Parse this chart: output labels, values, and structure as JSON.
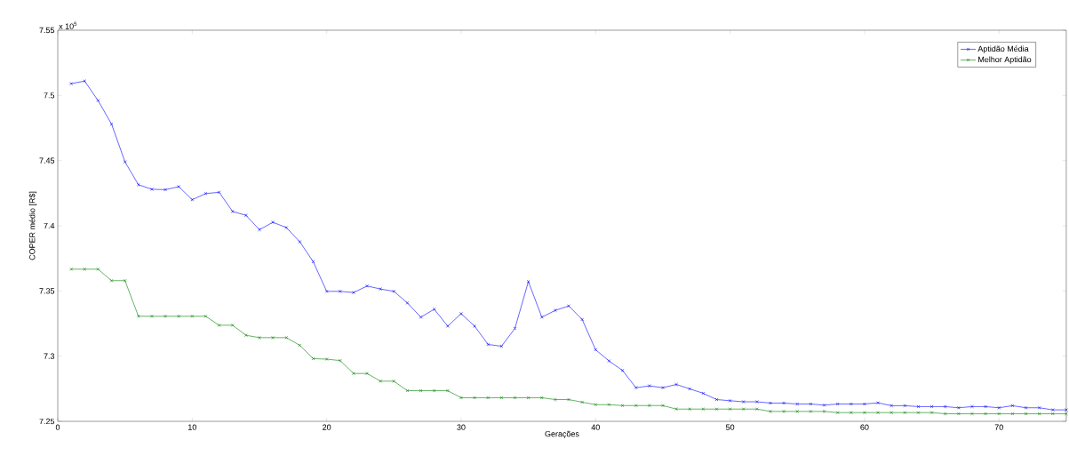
{
  "chart_data": {
    "type": "line",
    "xlabel": "Gerações",
    "ylabel": "COPER médio [R$]",
    "annotations": [
      "x 10$^{5}$"
    ],
    "x": [
      1,
      2,
      3,
      4,
      5,
      6,
      7,
      8,
      9,
      10,
      11,
      12,
      13,
      14,
      15,
      16,
      17,
      18,
      19,
      20,
      21,
      22,
      23,
      24,
      25,
      26,
      27,
      28,
      29,
      30,
      31,
      32,
      33,
      34,
      35,
      36,
      37,
      38,
      39,
      40,
      41,
      42,
      43,
      44,
      45,
      46,
      47,
      48,
      49,
      50,
      51,
      52,
      53,
      54,
      55,
      56,
      57,
      58,
      59,
      60,
      61,
      62,
      63,
      64,
      65,
      66,
      67,
      68,
      69,
      70,
      71,
      72,
      73,
      74,
      75
    ],
    "series": [
      {
        "name": "Aptidão Média",
        "color": "#0000ff",
        "values": [
          7.509,
          7.511,
          7.496,
          7.478,
          7.449,
          7.4315,
          7.428,
          7.4277,
          7.43,
          7.42,
          7.4247,
          7.4257,
          7.411,
          7.408,
          7.397,
          7.4027,
          7.3986,
          7.3877,
          7.3724,
          7.3497,
          7.3497,
          7.3488,
          7.3538,
          7.3515,
          7.3497,
          7.3408,
          7.3299,
          7.336,
          7.323,
          7.3326,
          7.323,
          7.309,
          7.3076,
          7.3213,
          7.3572,
          7.3299,
          7.3351,
          7.3385,
          7.3281,
          7.3049,
          7.2963,
          7.289,
          7.2758,
          7.2772,
          7.2758,
          7.2783,
          7.2749,
          7.2715,
          7.2667,
          7.2658,
          7.265,
          7.265,
          7.264,
          7.264,
          7.2633,
          7.2633,
          7.2624,
          7.2633,
          7.2633,
          7.2633,
          7.2642,
          7.262,
          7.262,
          7.2613,
          7.2613,
          7.2613,
          7.2604,
          7.2613,
          7.2613,
          7.2604,
          7.262,
          7.2604,
          7.2604,
          7.2588,
          7.2588
        ]
      },
      {
        "name": "Melhor Aptidão",
        "color": "#008000",
        "values": [
          7.3667,
          7.3667,
          7.3667,
          7.3579,
          7.3579,
          7.3306,
          7.3306,
          7.3306,
          7.3306,
          7.3306,
          7.3306,
          7.3237,
          7.3237,
          7.316,
          7.3142,
          7.3142,
          7.3142,
          7.3083,
          7.2981,
          7.2977,
          7.2966,
          7.2867,
          7.2867,
          7.2808,
          7.2808,
          7.2735,
          7.2735,
          7.2735,
          7.2735,
          7.2681,
          7.2681,
          7.2681,
          7.2681,
          7.2681,
          7.2681,
          7.2681,
          7.2667,
          7.2667,
          7.2647,
          7.2628,
          7.2628,
          7.2621,
          7.2621,
          7.2621,
          7.2621,
          7.2594,
          7.2594,
          7.2594,
          7.2594,
          7.2594,
          7.2594,
          7.2594,
          7.2576,
          7.2576,
          7.2576,
          7.2576,
          7.2576,
          7.2567,
          7.2567,
          7.2567,
          7.2567,
          7.2567,
          7.2567,
          7.2567,
          7.2567,
          7.2558,
          7.2558,
          7.2558,
          7.2558,
          7.2558,
          7.2558,
          7.2558,
          7.2558,
          7.2558,
          7.2558
        ]
      }
    ],
    "xlim": [
      0,
      75
    ],
    "ylim": [
      7.25,
      7.55
    ],
    "xticks": [
      0,
      10,
      20,
      30,
      40,
      50,
      60,
      70
    ],
    "yticks": [
      7.25,
      7.3,
      7.35,
      7.4,
      7.45,
      7.5,
      7.55
    ],
    "grid": false,
    "legend": "top right",
    "marker": "cross",
    "line_style": "solid"
  }
}
